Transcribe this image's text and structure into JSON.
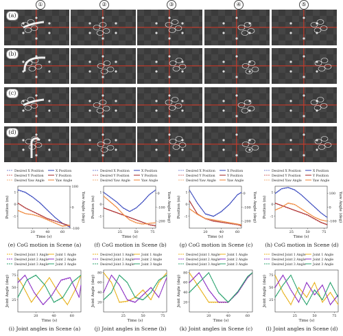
{
  "column_headers": [
    "①",
    "②",
    "③",
    "④",
    "⑤"
  ],
  "row_labels": [
    "(a)",
    "(b)",
    "(c)",
    "(d)"
  ],
  "cog_legend": [
    "Desired X Position",
    "X Position",
    "Desired Y Position",
    "Y Position",
    "Desired Yaw Angle",
    "Yaw Angle"
  ],
  "joint_legend": [
    "Desired Joint 1 Angle",
    "Joint 1 Angle",
    "Desired Joint 2 Angle",
    "Joint 2 Angle",
    "Desired Joint 3 Angle",
    "Joint 3 Angle"
  ],
  "colors": {
    "x": "#2b3bb8",
    "x_desired": "#7986d6",
    "y": "#a01c1c",
    "y_desired": "#d36a6a",
    "yaw": "#ef7f2e",
    "yaw_desired": "#f4b07a",
    "j1": "#e8b21c",
    "j2": "#8c2fc4",
    "j3": "#2aa36e"
  },
  "cog_axis": {
    "xlabel": "Time (s)",
    "ylabel": "Position (m)",
    "y2label": "Yaw Angle (deg)"
  },
  "joint_axis": {
    "xlabel": "Time (s)",
    "ylabel": "Joint Angle (deg)"
  },
  "chart_data": [
    {
      "type": "line",
      "caption": "(e) CoG motion in Scene (a)",
      "xlim": [
        0,
        70
      ],
      "ylim": [
        -2,
        1.5
      ],
      "y2lim": [
        -100,
        100
      ],
      "xticks": [
        20,
        40,
        60
      ],
      "yticks": [
        -1,
        0,
        1
      ],
      "y2ticks": [
        100,
        0,
        -100
      ],
      "series": [
        {
          "key": "x",
          "axis": "y",
          "x": [
            0,
            10,
            20,
            30,
            40,
            50,
            60,
            70
          ],
          "y": [
            1.2,
            1.0,
            0.6,
            0.1,
            -0.5,
            -1.1,
            -1.6,
            -1.9
          ]
        },
        {
          "key": "y",
          "axis": "y",
          "x": [
            0,
            10,
            20,
            30,
            40,
            50,
            60,
            70
          ],
          "y": [
            0.1,
            -0.3,
            -0.6,
            -0.9,
            -1.2,
            -1.4,
            -1.6,
            -1.8
          ]
        },
        {
          "key": "yaw",
          "axis": "y2",
          "x": [
            0,
            10,
            20,
            30,
            40,
            50,
            60,
            70
          ],
          "y": [
            -15,
            -30,
            -35,
            -45,
            -60,
            -75,
            -90,
            -85
          ]
        }
      ]
    },
    {
      "type": "line",
      "caption": "(f) CoG motion in Scene (b)",
      "xlim": [
        0,
        80
      ],
      "ylim": [
        -2,
        1.5
      ],
      "y2lim": [
        -250,
        50
      ],
      "xticks": [
        25,
        50,
        75
      ],
      "yticks": [
        -1,
        0,
        1
      ],
      "y2ticks": [
        0,
        -100,
        -200
      ],
      "series": [
        {
          "key": "x",
          "axis": "y",
          "x": [
            0,
            10,
            20,
            30,
            40,
            50,
            60,
            70,
            80
          ],
          "y": [
            1.0,
            0.6,
            0.2,
            -0.3,
            -0.6,
            -0.3,
            0.2,
            0.8,
            1.2
          ]
        },
        {
          "key": "y",
          "axis": "y",
          "x": [
            0,
            10,
            20,
            30,
            40,
            50,
            60,
            70,
            80
          ],
          "y": [
            -0.3,
            -0.5,
            -0.7,
            -0.9,
            -1.1,
            -1.3,
            -1.5,
            -1.7,
            -1.8
          ]
        },
        {
          "key": "yaw",
          "axis": "y2",
          "x": [
            0,
            10,
            20,
            30,
            40,
            50,
            60,
            70,
            80
          ],
          "y": [
            -20,
            -60,
            -100,
            -150,
            -190,
            -210,
            -220,
            -215,
            -210
          ]
        }
      ]
    },
    {
      "type": "line",
      "caption": "(g) CoG motion in Scene (c)",
      "xlim": [
        0,
        65
      ],
      "ylim": [
        -2,
        1.5
      ],
      "y2lim": [
        -250,
        50
      ],
      "xticks": [
        20,
        40,
        60
      ],
      "yticks": [
        -1,
        0,
        1
      ],
      "y2ticks": [
        0,
        -100,
        -200
      ],
      "series": [
        {
          "key": "x",
          "axis": "y",
          "x": [
            0,
            10,
            20,
            30,
            40,
            50,
            60,
            65
          ],
          "y": [
            1.2,
            0.1,
            -0.8,
            -1.0,
            -0.6,
            0.0,
            0.8,
            1.0
          ]
        },
        {
          "key": "y",
          "axis": "y",
          "x": [
            0,
            10,
            20,
            30,
            40,
            50,
            60,
            65
          ],
          "y": [
            0.3,
            -0.8,
            -1.2,
            -1.4,
            -1.5,
            -1.6,
            -1.7,
            -1.8
          ]
        },
        {
          "key": "yaw",
          "axis": "y2",
          "x": [
            0,
            10,
            20,
            30,
            40,
            50,
            60,
            65
          ],
          "y": [
            -110,
            -150,
            -180,
            -190,
            -200,
            -210,
            -220,
            -225
          ]
        }
      ]
    },
    {
      "type": "line",
      "caption": "(h) CoG motion in Scene (d)",
      "xlim": [
        0,
        80
      ],
      "ylim": [
        -2,
        1.5
      ],
      "y2lim": [
        -150,
        150
      ],
      "xticks": [
        25,
        50,
        75
      ],
      "yticks": [
        -1,
        0,
        1
      ],
      "y2ticks": [
        100,
        0,
        -100
      ],
      "series": [
        {
          "key": "x",
          "axis": "y",
          "x": [
            0,
            10,
            20,
            30,
            40,
            50,
            60,
            70,
            80
          ],
          "y": [
            0.9,
            1.3,
            1.4,
            1.2,
            0.8,
            0.3,
            -0.2,
            -0.7,
            -1.1
          ]
        },
        {
          "key": "y",
          "axis": "y",
          "x": [
            0,
            10,
            20,
            30,
            40,
            50,
            60,
            70,
            80
          ],
          "y": [
            0.1,
            -0.1,
            -0.3,
            -0.5,
            -0.7,
            -0.9,
            -1.2,
            -1.5,
            -1.7
          ]
        },
        {
          "key": "yaw",
          "axis": "y2",
          "x": [
            0,
            10,
            20,
            30,
            40,
            50,
            60,
            70,
            80
          ],
          "y": [
            -20,
            0,
            30,
            20,
            -10,
            -40,
            -70,
            -90,
            -100
          ]
        }
      ]
    },
    {
      "type": "line",
      "caption": "(i) Joint angles in Scene (a)",
      "xlim": [
        0,
        70
      ],
      "ylim": [
        0,
        85
      ],
      "xticks": [
        20,
        40,
        60
      ],
      "yticks": [
        25,
        50,
        75
      ],
      "series": [
        {
          "key": "j1",
          "x": [
            0,
            5,
            15,
            25,
            35,
            45,
            55,
            65,
            70
          ],
          "y": [
            70,
            55,
            20,
            45,
            70,
            40,
            15,
            50,
            75
          ]
        },
        {
          "key": "j2",
          "x": [
            0,
            8,
            18,
            28,
            38,
            48,
            58,
            68,
            70
          ],
          "y": [
            60,
            75,
            40,
            15,
            35,
            65,
            70,
            30,
            55
          ]
        },
        {
          "key": "j3",
          "x": [
            0,
            10,
            20,
            30,
            40,
            50,
            60,
            70
          ],
          "y": [
            30,
            65,
            75,
            55,
            20,
            30,
            60,
            75
          ]
        }
      ]
    },
    {
      "type": "line",
      "caption": "(j) Joint angles in Scene (b)",
      "xlim": [
        0,
        80
      ],
      "ylim": [
        0,
        85
      ],
      "xticks": [
        25,
        50,
        75
      ],
      "yticks": [
        20,
        40,
        60,
        80
      ],
      "series": [
        {
          "key": "j1",
          "x": [
            0,
            10,
            20,
            30,
            40,
            50,
            60,
            70,
            80
          ],
          "y": [
            80,
            60,
            20,
            22,
            30,
            45,
            25,
            60,
            80
          ]
        },
        {
          "key": "j2",
          "x": [
            0,
            10,
            20,
            30,
            40,
            50,
            60,
            70,
            80
          ],
          "y": [
            40,
            75,
            55,
            25,
            20,
            35,
            50,
            30,
            70
          ]
        },
        {
          "key": "j3",
          "x": [
            0,
            10,
            20,
            30,
            40,
            50,
            60,
            70,
            80
          ],
          "y": [
            25,
            40,
            75,
            60,
            30,
            25,
            40,
            65,
            75
          ]
        }
      ]
    },
    {
      "type": "line",
      "caption": "(k) Joint angles in Scene (c)",
      "xlim": [
        0,
        65
      ],
      "ylim": [
        0,
        85
      ],
      "xticks": [
        20,
        40,
        60
      ],
      "yticks": [
        20,
        40,
        60,
        80
      ],
      "series": [
        {
          "key": "j1",
          "x": [
            0,
            10,
            20,
            30,
            40,
            50,
            60,
            65
          ],
          "y": [
            80,
            50,
            20,
            20,
            20,
            40,
            70,
            80
          ]
        },
        {
          "key": "j2",
          "x": [
            0,
            10,
            20,
            30,
            40,
            50,
            60,
            65
          ],
          "y": [
            60,
            80,
            45,
            20,
            20,
            40,
            70,
            80
          ]
        },
        {
          "key": "j3",
          "x": [
            0,
            10,
            20,
            30,
            40,
            50,
            60,
            65
          ],
          "y": [
            40,
            60,
            80,
            40,
            20,
            42,
            72,
            80
          ]
        }
      ]
    },
    {
      "type": "line",
      "caption": "(l) Joint angles in Scene (d)",
      "xlim": [
        0,
        80
      ],
      "ylim": [
        0,
        85
      ],
      "xticks": [
        25,
        50,
        75
      ],
      "yticks": [
        25,
        50,
        75
      ],
      "series": [
        {
          "key": "j1",
          "x": [
            0,
            10,
            20,
            30,
            40,
            50,
            60,
            70,
            80
          ],
          "y": [
            75,
            40,
            15,
            50,
            30,
            60,
            20,
            40,
            15
          ]
        },
        {
          "key": "j2",
          "x": [
            0,
            10,
            20,
            30,
            40,
            50,
            60,
            70,
            80
          ],
          "y": [
            50,
            75,
            45,
            20,
            60,
            35,
            55,
            15,
            35
          ]
        },
        {
          "key": "j3",
          "x": [
            0,
            10,
            20,
            30,
            40,
            50,
            60,
            70,
            80
          ],
          "y": [
            30,
            55,
            75,
            40,
            15,
            45,
            25,
            60,
            30
          ]
        }
      ]
    }
  ]
}
